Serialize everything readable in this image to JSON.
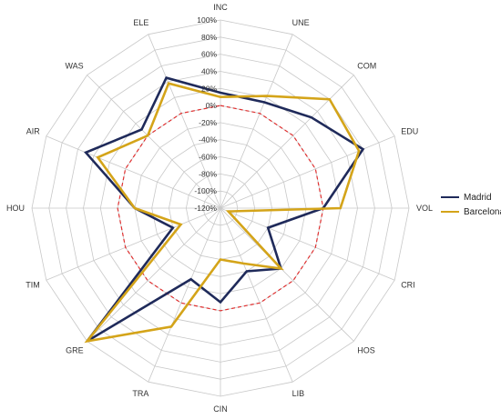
{
  "chart_data": {
    "type": "radar",
    "categories": [
      "INC",
      "UNE",
      "COM",
      "EDU",
      "VOL",
      "CRI",
      "HOS",
      "LIB",
      "CIN",
      "TRA",
      "GRE",
      "TIM",
      "HOU",
      "AIR",
      "WAS",
      "ELE"
    ],
    "tick_labels": [
      "100%",
      "80%",
      "60%",
      "40%",
      "20%",
      "0%",
      "-20%",
      "-40%",
      "-60%",
      "-80%",
      "-100%",
      "-120%"
    ],
    "rlim": [
      -120,
      100
    ],
    "reference_value": 0,
    "grid": true,
    "legend_position": "right",
    "series": [
      {
        "name": "Madrid",
        "color": "#1f2a5a",
        "values": [
          15,
          14,
          30,
          60,
          0,
          -60,
          -20,
          -40,
          -10,
          -30,
          100,
          -60,
          -20,
          50,
          10,
          45
        ]
      },
      {
        "name": "Barcelona",
        "color": "#d4a419",
        "values": [
          10,
          22,
          60,
          55,
          20,
          -110,
          -20,
          -50,
          -60,
          30,
          100,
          -70,
          -20,
          35,
          0,
          38
        ]
      }
    ]
  },
  "colors": {
    "grid": "#c8c8c8",
    "reference": "#e03030"
  }
}
